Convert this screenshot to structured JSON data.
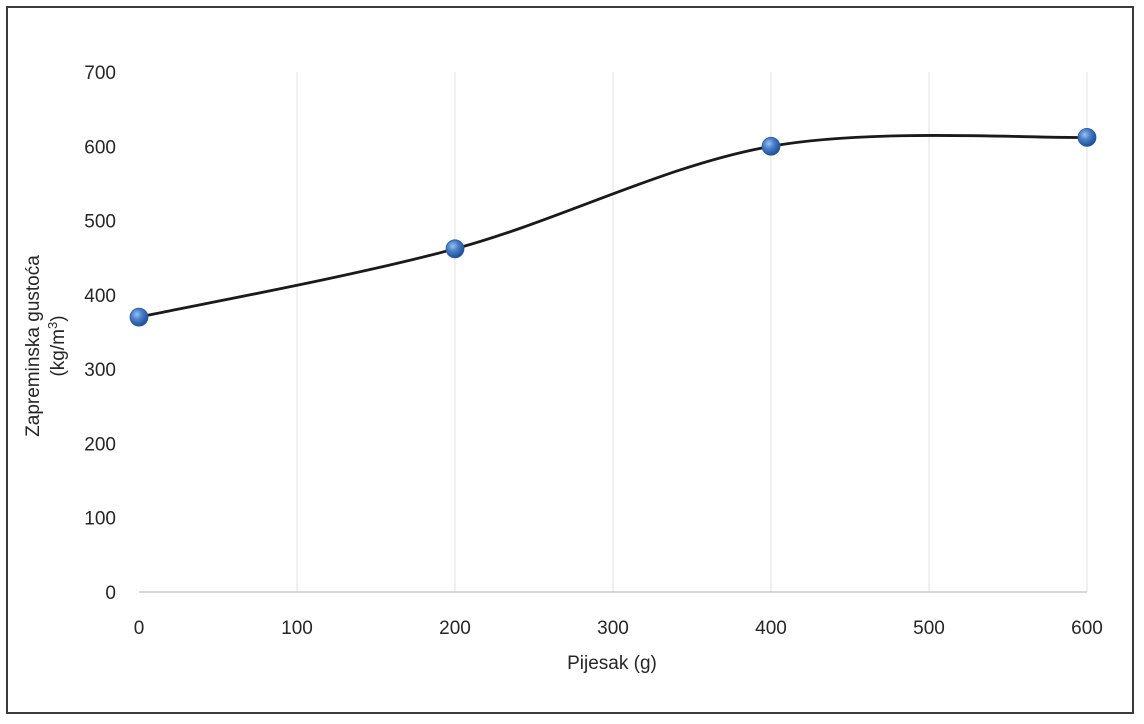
{
  "chart_data": {
    "type": "line",
    "smooth": true,
    "markers": true,
    "x": [
      0,
      200,
      400,
      600
    ],
    "series": [
      {
        "values": [
          370,
          462,
          600,
          612
        ],
        "line_color": "#1a1a1a",
        "marker_color": "#3f72c2"
      }
    ],
    "title": "",
    "xlabel": "Pijesak (g)",
    "ylabel_line1": "Zapreminska gustoća",
    "ylabel_line2_prefix": "(kg/m",
    "ylabel_line2_sup": "3",
    "ylabel_line2_suffix": ")",
    "xlim": [
      0,
      600
    ],
    "ylim": [
      0,
      700
    ],
    "xticks": [
      0,
      100,
      200,
      300,
      400,
      500,
      600
    ],
    "yticks": [
      0,
      100,
      200,
      300,
      400,
      500,
      600,
      700
    ],
    "xtick_labels": [
      "0",
      "100",
      "200",
      "300",
      "400",
      "500",
      "600"
    ],
    "ytick_labels": [
      "0",
      "100",
      "200",
      "300",
      "400",
      "500",
      "600",
      "700"
    ],
    "grid": "vertical",
    "grid_color": "#e6e6e6",
    "legend": "none"
  }
}
